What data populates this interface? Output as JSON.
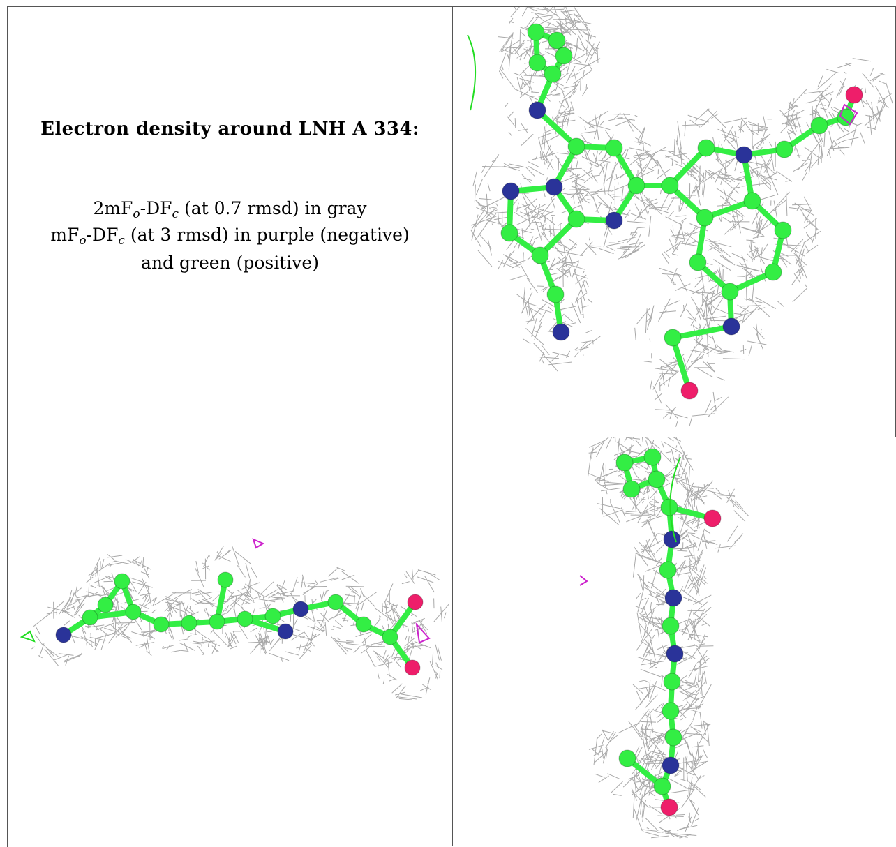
{
  "caption": {
    "title": "Electron density around LNH A 334:",
    "line1": {
      "pre": "2mF",
      "sub1": "o",
      "mid": "-DF",
      "sub2": "c",
      "post": " (at 0.7 rmsd) in gray"
    },
    "line2": {
      "pre": "mF",
      "sub1": "o",
      "mid": "-DF",
      "sub2": "c",
      "post": " (at 3 rmsd) in purple (negative)"
    },
    "line3": "and green (positive)"
  },
  "colors": {
    "mesh": "#9a9a9a",
    "carbon": "#33ee44",
    "nitrogen": "#2a3399",
    "oxygen": "#ee1e6a",
    "negative": "#cc22cc",
    "positive": "#22dd22",
    "border": "#555555"
  },
  "panels": [
    "top-view",
    "side-view",
    "edge-view"
  ]
}
